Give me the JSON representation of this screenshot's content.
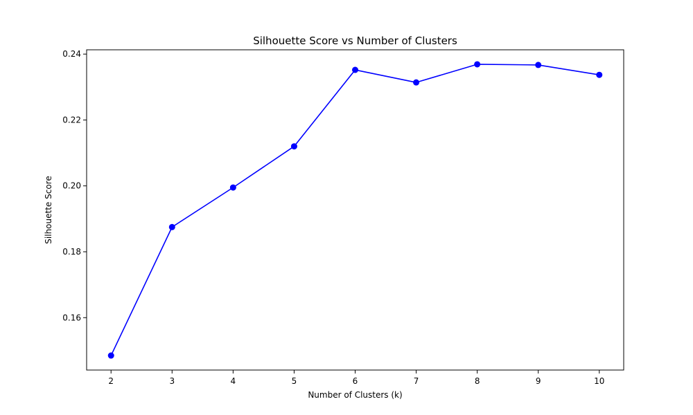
{
  "chart_data": {
    "type": "line",
    "title": "Silhouette Score vs Number of Clusters",
    "xlabel": "Number of Clusters (k)",
    "ylabel": "Silhouette Score",
    "x": [
      2,
      3,
      4,
      5,
      6,
      7,
      8,
      9,
      10
    ],
    "series": [
      {
        "values": [
          0.1485,
          0.1875,
          0.1995,
          0.212,
          0.2352,
          0.2314,
          0.2369,
          0.2367,
          0.2337
        ],
        "color": "#0000ff",
        "marker": "circle"
      }
    ],
    "xticks": [
      "2",
      "3",
      "4",
      "5",
      "6",
      "7",
      "8",
      "9",
      "10"
    ],
    "yticks": [
      "0.16",
      "0.18",
      "0.20",
      "0.22",
      "0.24"
    ],
    "ytick_values": [
      0.16,
      0.18,
      0.2,
      0.22,
      0.24
    ],
    "xlim": [
      1.6,
      10.4
    ],
    "ylim": [
      0.1441,
      0.2413
    ],
    "grid": false,
    "legend": false
  }
}
